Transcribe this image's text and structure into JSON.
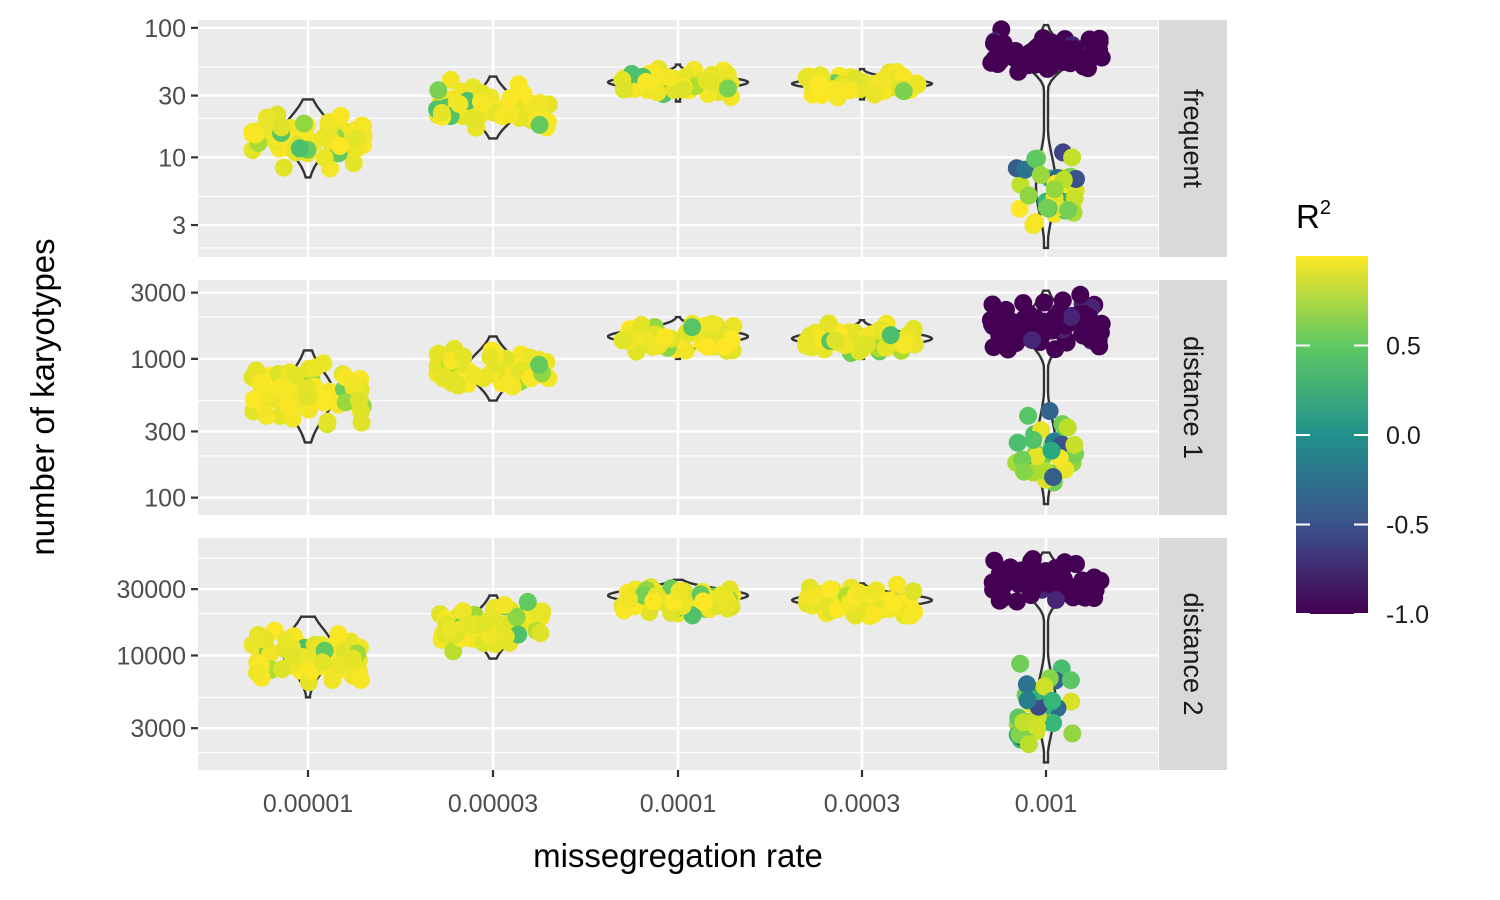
{
  "chart_data": {
    "type": "scatter",
    "subtype": "faceted violin + jittered points (log y axis)",
    "xlabel": "missegregation rate",
    "ylabel": "number of karyotypes",
    "categories": [
      "0.00001",
      "0.00003",
      "0.0001",
      "0.0003",
      "0.001"
    ],
    "y_scale": "log10",
    "grid": true,
    "legend_position": "right",
    "legend": {
      "title": "R",
      "title_superscript": "2",
      "colormap": "viridis",
      "range": [
        -1.0,
        1.0
      ],
      "ticks": [
        "0.5",
        "0.0",
        "-0.5",
        "-1.0"
      ],
      "tick_values": [
        0.5,
        0.0,
        -0.5,
        -1.0
      ]
    },
    "facets": [
      {
        "strip": "frequent",
        "ylim": [
          1.7,
          115
        ],
        "yticks": [
          3,
          10,
          30,
          100
        ],
        "yticklabels": [
          "3",
          "10",
          "30",
          "100"
        ],
        "groups": [
          {
            "x": "0.00001",
            "ymin": 7,
            "ymax": 28,
            "center": 15,
            "r2": 0.95
          },
          {
            "x": "0.00003",
            "ymin": 14,
            "ymax": 42,
            "center": 24,
            "r2": 0.93
          },
          {
            "x": "0.0001",
            "ymin": 27,
            "ymax": 52,
            "center": 38,
            "r2": 0.93
          },
          {
            "x": "0.0003",
            "ymin": 28,
            "ymax": 48,
            "center": 37,
            "r2": 0.93
          },
          {
            "x": "0.001",
            "ymin": 40,
            "ymax": 105,
            "center": 60,
            "r2": -1.0,
            "low_cluster": {
              "ymin": 2,
              "ymax": 16,
              "center": 6,
              "r2": 0.7
            }
          }
        ]
      },
      {
        "strip": "distance 1",
        "ylim": [
          75,
          3700
        ],
        "yticks": [
          100,
          300,
          1000,
          3000
        ],
        "yticklabels": [
          "100",
          "300",
          "1000",
          "3000"
        ],
        "groups": [
          {
            "x": "0.00001",
            "ymin": 250,
            "ymax": 1150,
            "center": 550,
            "r2": 0.95
          },
          {
            "x": "0.00003",
            "ymin": 500,
            "ymax": 1450,
            "center": 850,
            "r2": 0.93
          },
          {
            "x": "0.0001",
            "ymin": 1000,
            "ymax": 2000,
            "center": 1450,
            "r2": 0.93
          },
          {
            "x": "0.0003",
            "ymin": 1000,
            "ymax": 1900,
            "center": 1400,
            "r2": 0.93
          },
          {
            "x": "0.001",
            "ymin": 1000,
            "ymax": 3100,
            "center": 1700,
            "r2": -1.0,
            "low_cluster": {
              "ymin": 90,
              "ymax": 620,
              "center": 230,
              "r2": 0.7
            }
          }
        ]
      },
      {
        "strip": "distance 2",
        "ylim": [
          1500,
          70000
        ],
        "yticks": [
          3000,
          10000,
          30000
        ],
        "yticklabels": [
          "3000",
          "10000",
          "30000"
        ],
        "groups": [
          {
            "x": "0.00001",
            "ymin": 5000,
            "ymax": 19000,
            "center": 11000,
            "r2": 0.95
          },
          {
            "x": "0.00003",
            "ymin": 9500,
            "ymax": 27000,
            "center": 16000,
            "r2": 0.93
          },
          {
            "x": "0.0001",
            "ymin": 18000,
            "ymax": 35000,
            "center": 27000,
            "r2": 0.93
          },
          {
            "x": "0.0003",
            "ymin": 18000,
            "ymax": 33000,
            "center": 25000,
            "r2": 0.93
          },
          {
            "x": "0.001",
            "ymin": 20000,
            "ymax": 55000,
            "center": 33000,
            "r2": -1.0,
            "low_cluster": {
              "ymin": 1700,
              "ymax": 10000,
              "center": 4500,
              "r2": 0.7
            }
          }
        ]
      }
    ]
  }
}
